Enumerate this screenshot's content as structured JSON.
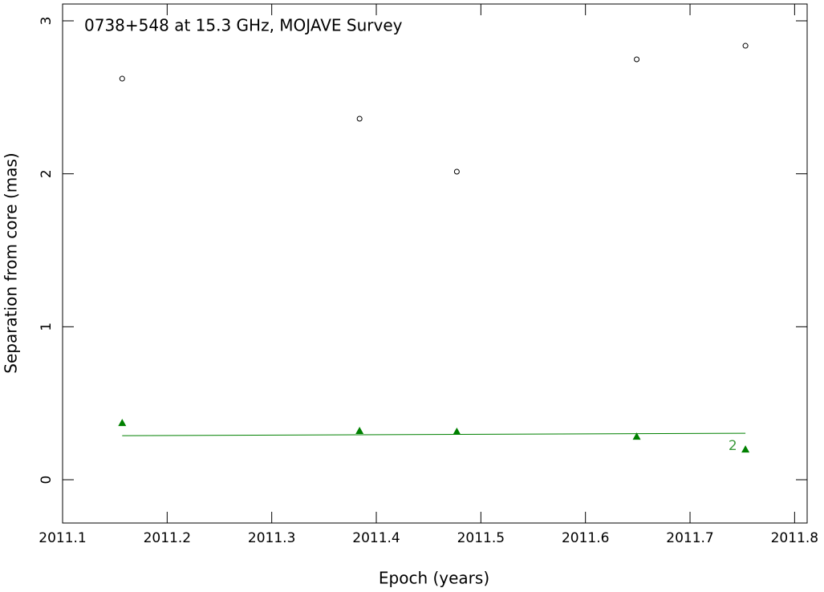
{
  "chart_data": {
    "type": "scatter",
    "title": "0738+548 at 15.3 GHz, MOJAVE Survey",
    "x_label": "Epoch (years)",
    "y_label": "Separation from core (mas)",
    "xlim": [
      2011.1,
      2011.812
    ],
    "ylim": [
      -0.283,
      3.11
    ],
    "xticks": [
      2011.1,
      2011.2,
      2011.3,
      2011.4,
      2011.5,
      2011.6,
      2011.7,
      2011.8
    ],
    "yticks": [
      0,
      1,
      2,
      3
    ],
    "series": [
      {
        "marker": "circle",
        "color": "#000000",
        "x": [
          2011.157,
          2011.384,
          2011.477,
          2011.649,
          2011.753
        ],
        "values": [
          2.622,
          2.36,
          2.014,
          2.748,
          2.837
        ]
      },
      {
        "marker": "triangle",
        "color": "#008000",
        "x": [
          2011.157,
          2011.384,
          2011.477,
          2011.649,
          2011.753
        ],
        "values": [
          0.372,
          0.32,
          0.315,
          0.283,
          0.199
        ]
      },
      {
        "marker": "line",
        "color": "#008000",
        "x": [
          2011.157,
          2011.753
        ],
        "values": [
          0.288,
          0.304
        ]
      }
    ],
    "annotations": [
      {
        "text": "2",
        "x": 2011.745,
        "y": 0.22,
        "color": "#3a9a3a"
      }
    ]
  }
}
